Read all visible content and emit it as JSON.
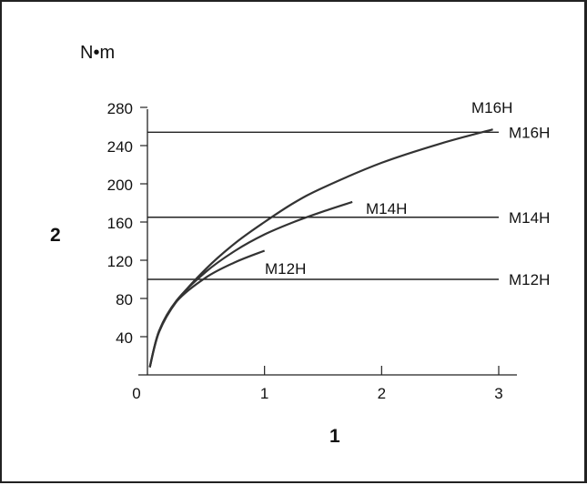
{
  "chart_data": {
    "type": "line",
    "unit_label": "N•m",
    "xlabel": "1",
    "ylabel": "2",
    "xlim": [
      0,
      3
    ],
    "ylim": [
      0,
      280
    ],
    "x_ticks": [
      "0",
      "1",
      "2",
      "3"
    ],
    "y_ticks": [
      "40",
      "80",
      "120",
      "160",
      "200",
      "240",
      "280"
    ],
    "y_tick_values": [
      40,
      80,
      120,
      160,
      200,
      240,
      280
    ],
    "x_tick_values": [
      0,
      1,
      2,
      3
    ],
    "reference_lines": [
      {
        "name": "M16H",
        "value": 254
      },
      {
        "name": "M14H",
        "value": 165
      },
      {
        "name": "M12H",
        "value": 100
      }
    ],
    "series": [
      {
        "name": "M16H",
        "x": [
          0.02,
          0.1,
          0.25,
          0.5,
          0.75,
          1.0,
          1.25,
          1.5,
          2.0,
          2.5,
          2.95
        ],
        "y": [
          8,
          45,
          77,
          111,
          138,
          160,
          180,
          196,
          222,
          242,
          257
        ]
      },
      {
        "name": "M14H",
        "x": [
          0.02,
          0.1,
          0.25,
          0.5,
          0.75,
          1.0,
          1.25,
          1.5,
          1.75
        ],
        "y": [
          8,
          46,
          78,
          108,
          130,
          147,
          160,
          171,
          181
        ]
      },
      {
        "name": "M12H",
        "x": [
          0.02,
          0.1,
          0.25,
          0.5,
          0.75,
          1.0
        ],
        "y": [
          8,
          46,
          77,
          102,
          118,
          130
        ]
      }
    ]
  }
}
